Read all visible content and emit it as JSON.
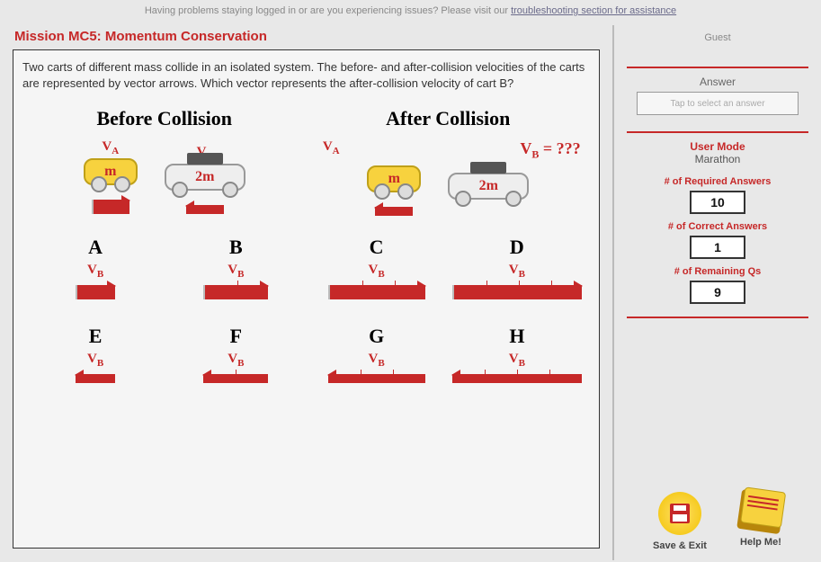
{
  "banner": {
    "prefix": "Having problems staying logged in or are you experiencing issues? Please visit our ",
    "link": "troubleshooting section for assistance"
  },
  "mission_title": "Mission MC5: Momentum Conservation",
  "question": "Two carts of different mass collide in an isolated system. The before- and after-collision velocities of the carts are represented by vector arrows. Which vector represents the after-collision velocity of cart B?",
  "headings": {
    "before": "Before Collision",
    "after": "After Collision"
  },
  "labels": {
    "vA": "V",
    "vA_sub": "A",
    "vB": "V",
    "vB_sub": "B",
    "m": "m",
    "m2": "2m",
    "unknown": "= ???"
  },
  "options": {
    "A": {
      "dir": "right",
      "len": 44,
      "ticks": []
    },
    "B": {
      "dir": "right",
      "len": 72,
      "ticks": [
        36
      ]
    },
    "C": {
      "dir": "right",
      "len": 108,
      "ticks": [
        36,
        72
      ]
    },
    "D": {
      "dir": "right",
      "len": 144,
      "ticks": [
        36,
        72,
        108
      ]
    },
    "E": {
      "dir": "left",
      "len": 44,
      "ticks": []
    },
    "F": {
      "dir": "left",
      "len": 72,
      "ticks": [
        36
      ]
    },
    "G": {
      "dir": "left",
      "len": 108,
      "ticks": [
        36,
        72
      ]
    },
    "H": {
      "dir": "left",
      "len": 144,
      "ticks": [
        36,
        72,
        108
      ]
    }
  },
  "sidebar": {
    "guest": "Guest",
    "answer_label": "Answer",
    "answer_placeholder": "Tap to select an answer",
    "user_mode_title": "User Mode",
    "user_mode_value": "Marathon",
    "required_label": "# of Required Answers",
    "required_value": "10",
    "correct_label": "# of Correct Answers",
    "correct_value": "1",
    "remaining_label": "# of Remaining Qs",
    "remaining_value": "9",
    "save_label": "Save & Exit",
    "help_label": "Help Me!"
  },
  "colors": {
    "accent": "#c62828",
    "cart_yellow": "#f7d23e"
  }
}
